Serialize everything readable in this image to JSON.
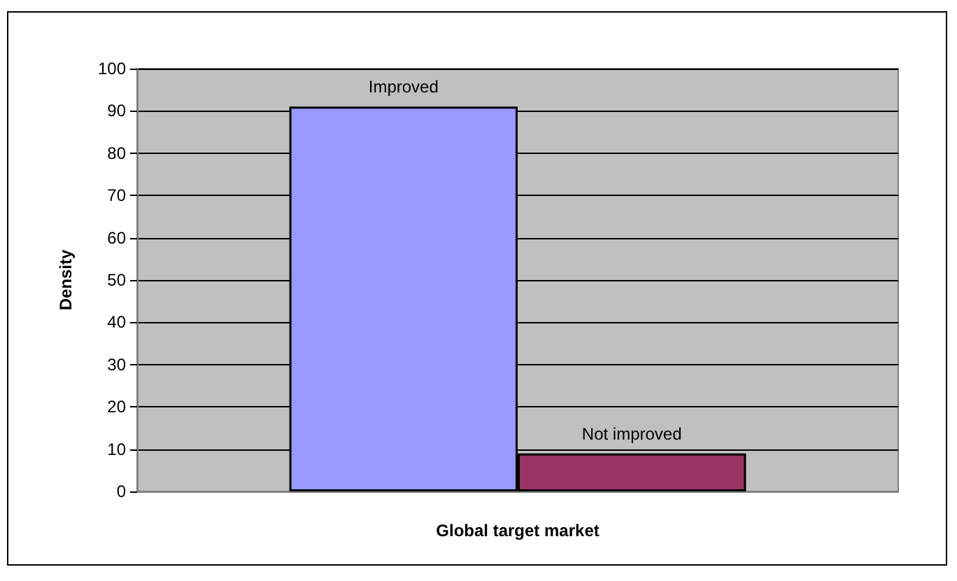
{
  "chart_data": {
    "type": "bar",
    "xlabel": "Global target market",
    "ylabel": "Density",
    "categories": [
      null
    ],
    "series": [
      {
        "name": "Improved",
        "color": "#9999ff",
        "values": [
          91
        ]
      },
      {
        "name": "Not improved",
        "color": "#993366",
        "values": [
          9
        ]
      }
    ],
    "ylim": [
      0,
      100
    ],
    "yticks": [
      0,
      10,
      20,
      30,
      40,
      50,
      60,
      70,
      80,
      90,
      100
    ],
    "grid": "y",
    "legend": false
  }
}
